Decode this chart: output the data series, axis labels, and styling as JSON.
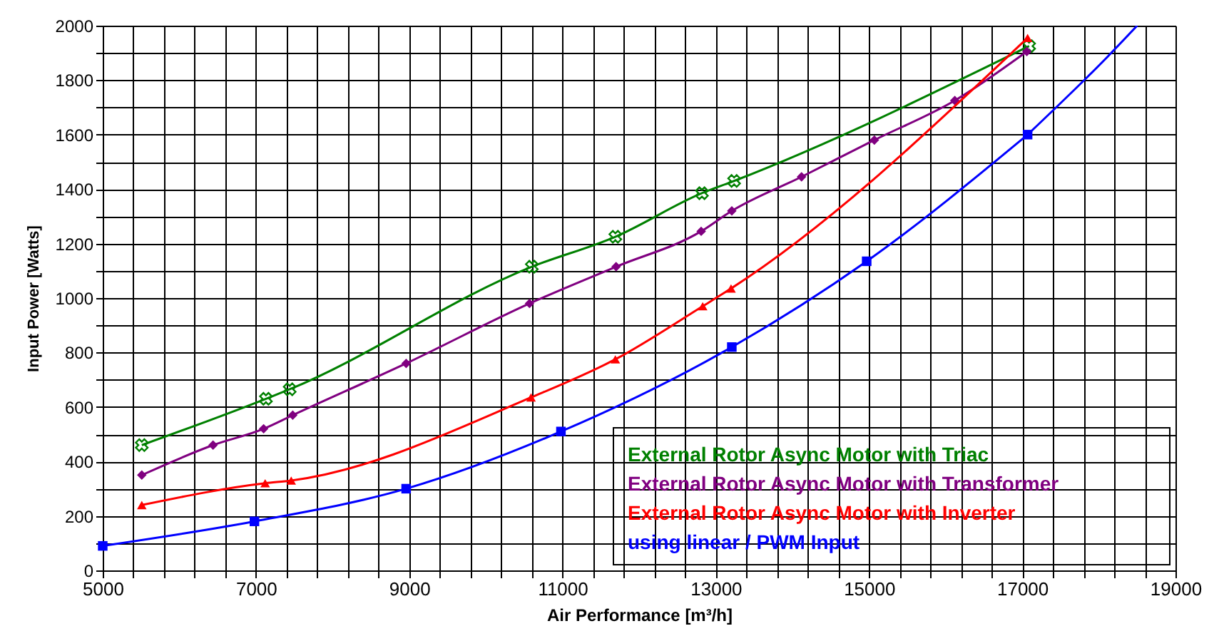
{
  "chart_data": {
    "type": "line",
    "xlabel": "Air Performance [m³/h]",
    "ylabel": "Input Power [Watts]",
    "xlim": [
      5000,
      19000
    ],
    "ylim": [
      0,
      2000
    ],
    "xticks": [
      5000,
      {
        "value": 5400,
        "label": null
      },
      {
        "value": 5800,
        "label": null
      },
      {
        "value": 6200,
        "label": null
      },
      {
        "value": 6600,
        "label": null
      },
      7000,
      {
        "value": 7400,
        "label": null
      },
      {
        "value": 7800,
        "label": null
      },
      {
        "value": 8200,
        "label": null
      },
      {
        "value": 8600,
        "label": null
      },
      9000,
      {
        "value": 9400,
        "label": null
      },
      {
        "value": 9800,
        "label": null
      },
      {
        "value": 10200,
        "label": null
      },
      {
        "value": 10600,
        "label": null
      },
      11000,
      {
        "value": 11400,
        "label": null
      },
      {
        "value": 11800,
        "label": null
      },
      {
        "value": 12200,
        "label": null
      },
      {
        "value": 12600,
        "label": null
      },
      13000,
      {
        "value": 13400,
        "label": null
      },
      {
        "value": 13800,
        "label": null
      },
      {
        "value": 14200,
        "label": null
      },
      {
        "value": 14600,
        "label": null
      },
      15000,
      {
        "value": 15400,
        "label": null
      },
      {
        "value": 15800,
        "label": null
      },
      {
        "value": 16200,
        "label": null
      },
      {
        "value": 16600,
        "label": null
      },
      17000,
      {
        "value": 17400,
        "label": null
      },
      {
        "value": 17800,
        "label": null
      },
      {
        "value": 18200,
        "label": null
      },
      {
        "value": 18600,
        "label": null
      },
      19000
    ],
    "yticks": [
      0,
      {
        "value": 100,
        "label": null
      },
      200,
      {
        "value": 300,
        "label": null
      },
      400,
      {
        "value": 500,
        "label": null
      },
      600,
      {
        "value": 700,
        "label": null
      },
      800,
      {
        "value": 900,
        "label": null
      },
      1000,
      {
        "value": 1100,
        "label": null
      },
      1200,
      {
        "value": 1300,
        "label": null
      },
      1400,
      {
        "value": 1500,
        "label": null
      },
      1600,
      {
        "value": 1700,
        "label": null
      },
      1800,
      {
        "value": 1900,
        "label": null
      },
      2000
    ],
    "grid": true,
    "legend": "bottom right",
    "series": [
      {
        "name": "External Rotor Async Motor with Triac",
        "color": "#008000",
        "marker": "cross",
        "x": [
          5510,
          7130,
          7440,
          10600,
          11690,
          12820,
          13240,
          17090
        ],
        "values": [
          460,
          630,
          665,
          1115,
          1225,
          1385,
          1430,
          1925
        ]
      },
      {
        "name": "External Rotor Async Motor with Transformer",
        "color": "#800080",
        "marker": "diamond",
        "x": [
          5510,
          6440,
          7100,
          7480,
          8960,
          10570,
          11700,
          12810,
          13210,
          14120,
          15070,
          16120,
          17060
        ],
        "values": [
          350,
          460,
          520,
          570,
          760,
          980,
          1115,
          1245,
          1320,
          1445,
          1580,
          1725,
          1905
        ]
      },
      {
        "name": "External Rotor Async Motor with Inverter",
        "color": "#ff0000",
        "marker": "triangle",
        "x": [
          5510,
          7120,
          7460,
          10590,
          11690,
          12830,
          13200,
          17070
        ],
        "values": [
          240,
          320,
          330,
          635,
          775,
          970,
          1035,
          1955
        ]
      },
      {
        "name": "using linear / PWM Input",
        "color": "#0000ff",
        "marker": "square",
        "x": [
          5000,
          6980,
          8960,
          10980,
          13210,
          14970,
          17070
        ],
        "values": [
          90,
          180,
          300,
          510,
          820,
          1135,
          1600
        ]
      },
      {
        "color": "#0000ff",
        "marker": "none",
        "x": [
          17070,
          18110,
          18500
        ],
        "values": [
          1600,
          1885,
          2000
        ]
      }
    ]
  }
}
